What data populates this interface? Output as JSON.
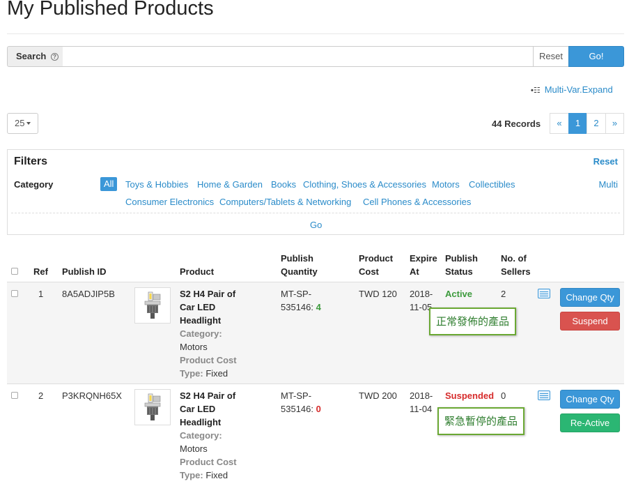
{
  "page": {
    "title": "My Published Products"
  },
  "search": {
    "label": "Search",
    "help": "?",
    "placeholder": "",
    "value": "",
    "reset_label": "Reset",
    "go_label": "Go!"
  },
  "multivar": {
    "icon": "list-expand-icon",
    "label": "Multi-Var.Expand"
  },
  "pagination": {
    "page_size": "25",
    "records": "44 Records",
    "prev": "«",
    "pages": [
      "1",
      "2"
    ],
    "next": "»",
    "current": "1"
  },
  "filters": {
    "title": "Filters",
    "reset": "Reset",
    "category_label": "Category",
    "all": "All",
    "categories_row1": [
      "Toys & Hobbies",
      "Home & Garden",
      "Books",
      "Clothing, Shoes & Accessories",
      "Motors",
      "Collectibles"
    ],
    "categories_row2": [
      "Consumer Electronics",
      "Computers/Tablets & Networking",
      "Cell Phones & Accessories"
    ],
    "multi": "Multi",
    "go": "Go"
  },
  "table": {
    "headers": {
      "ref": "Ref",
      "publish_id": "Publish ID",
      "product": "Product",
      "publish_quantity_1": "Publish",
      "publish_quantity_2": "Quantity",
      "product_cost_1": "Product",
      "product_cost_2": "Cost",
      "expire_at_1": "Expire",
      "expire_at_2": "At",
      "publish_status_1": "Publish",
      "publish_status_2": "Status",
      "sellers_1": "No. of",
      "sellers_2": "Sellers"
    },
    "rows": [
      {
        "ref": "1",
        "publish_id": "8A5ADJIP5B",
        "name_lines": [
          "S2 H4 Pair of",
          "Car LED",
          "Headlight"
        ],
        "category_label": "Category:",
        "category": "Motors",
        "cost_label": "Product Cost",
        "type_label": "Type:",
        "type": "Fixed",
        "sku_1": "MT-SP-",
        "sku_2": "535146:",
        "qty": "4",
        "cost": "TWD 120",
        "expire_1": "2018-",
        "expire_2": "11-05",
        "status": "Active",
        "sellers": "2",
        "btn_primary": "Change Qty",
        "btn_secondary": "Suspend",
        "note": "正常發佈的產品"
      },
      {
        "ref": "2",
        "publish_id": "P3KRQNH65X",
        "name_lines": [
          "S2 H4 Pair of",
          "Car LED",
          "Headlight"
        ],
        "category_label": "Category:",
        "category": "Motors",
        "cost_label": "Product Cost",
        "type_label": "Type:",
        "type": "Fixed",
        "sku_1": "MT-SP-",
        "sku_2": "535146:",
        "qty": "0",
        "cost": "TWD 200",
        "expire_1": "2018-",
        "expire_2": "11-04",
        "status": "Suspended",
        "sellers": "0",
        "btn_primary": "Change Qty",
        "btn_secondary": "Re-Active",
        "note": "緊急暫停的產品"
      }
    ]
  },
  "colors": {
    "primary": "#3b97d8",
    "link": "#2a8bc9",
    "danger": "#d9534f",
    "success": "#2bb673",
    "active_text": "#3c9a3c",
    "suspended_text": "#d62b2b",
    "callout_border": "#6aa833"
  }
}
